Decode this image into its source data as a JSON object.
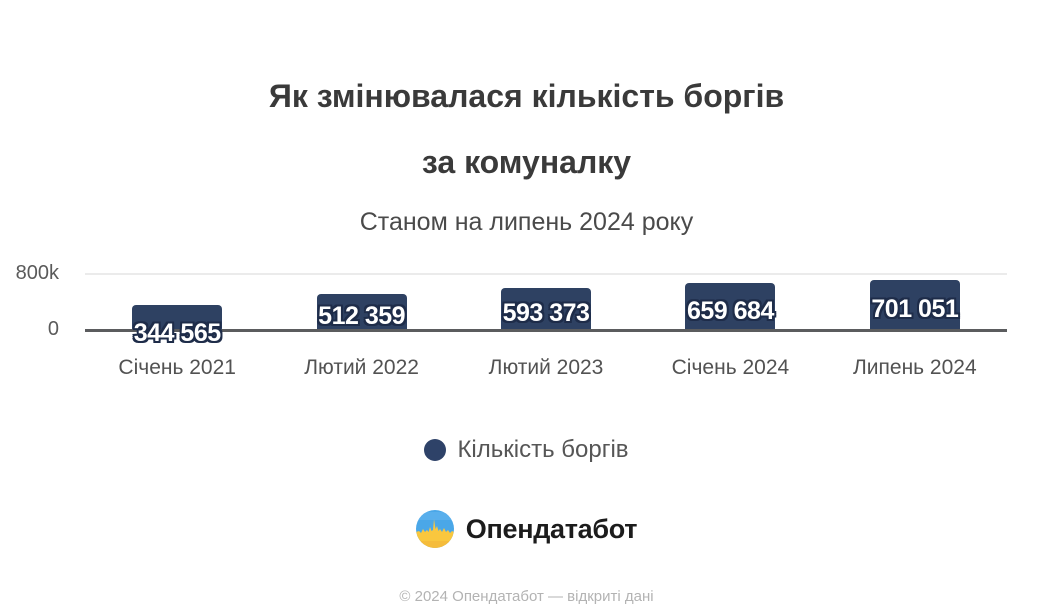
{
  "page": {
    "background_color": "#ffffff"
  },
  "header": {
    "title_line1": "Як змінювалася кількість боргів",
    "title_line2": "за комуналку",
    "subtitle": "Станом на липень 2024 року"
  },
  "chart_data": {
    "type": "bar",
    "title": "Як змінювалася кількість боргів за комуналку",
    "subtitle": "Станом на липень 2024 року",
    "categories": [
      "Січень 2021",
      "Лютий 2022",
      "Лютий 2023",
      "Січень 2024",
      "Липень 2024"
    ],
    "series": [
      {
        "name": "Кількість боргів",
        "values": [
          344565,
          512359,
          593373,
          659684,
          701051
        ],
        "value_labels": [
          "344 565",
          "512 359",
          "593 373",
          "659 684",
          "701 051"
        ],
        "color": "#2e4162"
      }
    ],
    "xlabel": "",
    "ylabel": "",
    "ylim": [
      0,
      800000
    ],
    "yticks": [
      {
        "value": 0,
        "label": "0"
      },
      {
        "value": 800000,
        "label": "800k"
      }
    ],
    "grid": "single horizontal gridline at 800k, dark baseline at 0",
    "legend_position": "bottom"
  },
  "legend": {
    "marker_color": "#2e4268",
    "label": "Кількість боргів"
  },
  "branding": {
    "name": "Опендатабот",
    "logo_colors": {
      "blue": "#4aa7e8",
      "yellow": "#f9c73e",
      "yellow_dark": "#f3b83a"
    }
  },
  "footer": {
    "copyright": "© 2024 Опендатабот — відкриті дані"
  }
}
